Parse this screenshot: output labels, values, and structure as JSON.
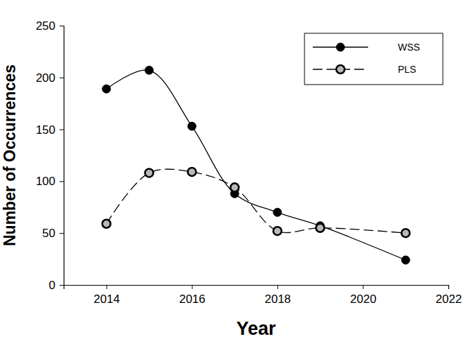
{
  "chart_data": {
    "type": "line",
    "x_label": "Year",
    "y_label": "Number of Occurrences",
    "x": [
      2014,
      2015,
      2016,
      2017,
      2018,
      2019,
      2021
    ],
    "series": [
      {
        "name": "WSS",
        "color": "#000000",
        "marker": "filled_circle",
        "line_style": "solid",
        "values": [
          189,
          207,
          153,
          88,
          70,
          57,
          24
        ]
      },
      {
        "name": "PLS",
        "color": "#000000",
        "marker": "hollow_circle",
        "line_style": "dashed",
        "values": [
          59,
          108,
          109,
          94,
          52,
          55,
          50
        ]
      }
    ],
    "xlim": [
      2013,
      2022
    ],
    "xticks": [
      2014,
      2016,
      2018,
      2020,
      2022
    ],
    "ylim": [
      0,
      250
    ],
    "yticks": [
      0,
      50,
      100,
      150,
      200,
      250
    ],
    "legend": "upper right",
    "grid": false
  }
}
